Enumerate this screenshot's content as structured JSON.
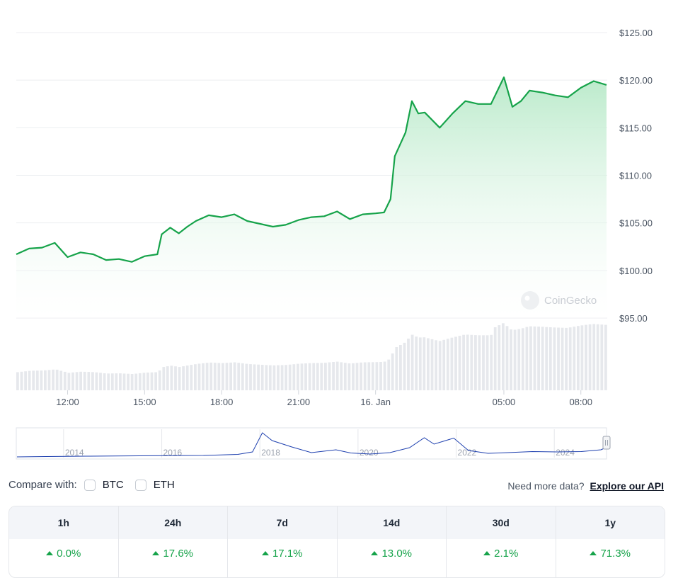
{
  "chart_data": {
    "type": "line",
    "y_ticks": [
      "$125.00",
      "$120.00",
      "$115.00",
      "$110.00",
      "$105.00",
      "$100.00",
      "$95.00"
    ],
    "ylim": [
      95,
      125
    ],
    "x_ticks": [
      "12:00",
      "15:00",
      "18:00",
      "21:00",
      "16. Jan",
      "05:00",
      "08:00"
    ],
    "x_range": [
      "15 Jan 10:00",
      "16 Jan 09:00"
    ],
    "line_color": "#16a34a",
    "fill_color": "#d1f2dc",
    "price_series": [
      [
        "10:00",
        101.7
      ],
      [
        "10:30",
        102.3
      ],
      [
        "11:00",
        102.4
      ],
      [
        "11:30",
        102.9
      ],
      [
        "12:00",
        101.4
      ],
      [
        "12:30",
        101.9
      ],
      [
        "13:00",
        101.7
      ],
      [
        "13:30",
        101.1
      ],
      [
        "14:00",
        101.2
      ],
      [
        "14:30",
        100.9
      ],
      [
        "15:00",
        101.5
      ],
      [
        "15:30",
        101.7
      ],
      [
        "15:40",
        103.8
      ],
      [
        "16:00",
        104.5
      ],
      [
        "16:20",
        103.9
      ],
      [
        "16:40",
        104.6
      ],
      [
        "17:00",
        105.2
      ],
      [
        "17:30",
        105.8
      ],
      [
        "18:00",
        105.6
      ],
      [
        "18:30",
        105.9
      ],
      [
        "19:00",
        105.2
      ],
      [
        "19:30",
        104.9
      ],
      [
        "20:00",
        104.6
      ],
      [
        "20:30",
        104.8
      ],
      [
        "21:00",
        105.3
      ],
      [
        "21:30",
        105.6
      ],
      [
        "22:00",
        105.7
      ],
      [
        "22:30",
        106.2
      ],
      [
        "23:00",
        105.4
      ],
      [
        "23:30",
        105.9
      ],
      [
        "00:00",
        106.0
      ],
      [
        "00:20",
        106.1
      ],
      [
        "00:35",
        107.5
      ],
      [
        "00:45",
        112.0
      ],
      [
        "01:10",
        114.5
      ],
      [
        "01:25",
        117.8
      ],
      [
        "01:40",
        116.5
      ],
      [
        "01:55",
        116.6
      ],
      [
        "02:30",
        115.0
      ],
      [
        "03:00",
        116.5
      ],
      [
        "03:30",
        117.8
      ],
      [
        "04:00",
        117.5
      ],
      [
        "04:30",
        117.5
      ],
      [
        "05:00",
        120.3
      ],
      [
        "05:20",
        117.2
      ],
      [
        "05:40",
        117.8
      ],
      [
        "06:00",
        118.9
      ],
      [
        "06:30",
        118.7
      ],
      [
        "07:00",
        118.4
      ],
      [
        "07:30",
        118.2
      ],
      [
        "08:00",
        119.2
      ],
      [
        "08:30",
        119.9
      ],
      [
        "09:00",
        119.5
      ]
    ],
    "volume_color": "#e6e8ec",
    "navigator": {
      "x_ticks": [
        "2014",
        "2016",
        "2018",
        "2020",
        "2022",
        "2024"
      ],
      "line_color": "#1e40af",
      "series": [
        [
          2013.0,
          2
        ],
        [
          2013.6,
          3
        ],
        [
          2014.4,
          4
        ],
        [
          2015.5,
          5
        ],
        [
          2016.8,
          6
        ],
        [
          2017.5,
          9
        ],
        [
          2017.8,
          16
        ],
        [
          2018.0,
          70
        ],
        [
          2018.2,
          48
        ],
        [
          2018.6,
          30
        ],
        [
          2019.0,
          14
        ],
        [
          2019.5,
          22
        ],
        [
          2019.8,
          13
        ],
        [
          2020.2,
          10
        ],
        [
          2020.6,
          14
        ],
        [
          2021.0,
          28
        ],
        [
          2021.3,
          56
        ],
        [
          2021.5,
          38
        ],
        [
          2021.9,
          55
        ],
        [
          2022.2,
          20
        ],
        [
          2022.6,
          12
        ],
        [
          2023.0,
          14
        ],
        [
          2023.5,
          17
        ],
        [
          2024.0,
          16
        ],
        [
          2024.5,
          17
        ],
        [
          2024.9,
          22
        ],
        [
          2025.0,
          28
        ]
      ]
    },
    "watermark": "CoinGecko"
  },
  "compare": {
    "label": "Compare with:",
    "options": [
      "BTC",
      "ETH"
    ]
  },
  "more_data": {
    "text": "Need more data?",
    "link": "Explore our API"
  },
  "changes": {
    "headers": [
      "1h",
      "24h",
      "7d",
      "14d",
      "30d",
      "1y"
    ],
    "values": [
      "0.0%",
      "17.6%",
      "17.1%",
      "13.0%",
      "2.1%",
      "71.3%"
    ],
    "color": "#16a34a"
  }
}
